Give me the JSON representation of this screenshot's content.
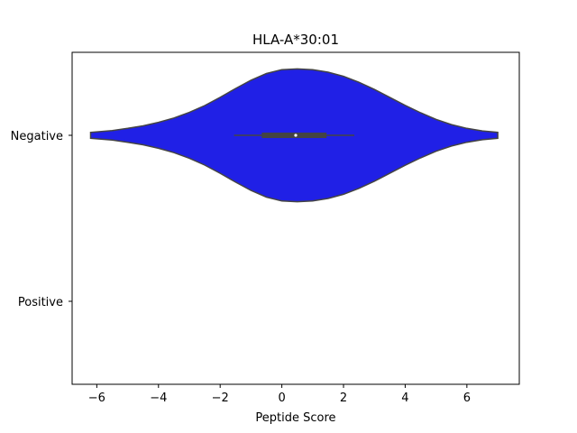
{
  "chart_data": {
    "type": "violin",
    "orientation": "horizontal",
    "title": "HLA-A*30:01",
    "xlabel": "Peptide Score",
    "ylabel": "",
    "xlim": [
      -6.8,
      7.7
    ],
    "x_ticks": [
      -6,
      -4,
      -2,
      0,
      2,
      4,
      6
    ],
    "x_tick_labels": [
      "−6",
      "−4",
      "−2",
      "0",
      "2",
      "4",
      "6"
    ],
    "categories": [
      "Negative",
      "Positive"
    ],
    "grid": false,
    "violins": [
      {
        "category": "Negative",
        "color": "#2020e6",
        "edge_color": "#444444",
        "profile": [
          [
            -6.2,
            0.045
          ],
          [
            -5.5,
            0.072
          ],
          [
            -5.0,
            0.104
          ],
          [
            -4.5,
            0.143
          ],
          [
            -4.0,
            0.195
          ],
          [
            -3.5,
            0.261
          ],
          [
            -3.0,
            0.345
          ],
          [
            -2.5,
            0.448
          ],
          [
            -2.0,
            0.572
          ],
          [
            -1.5,
            0.705
          ],
          [
            -1.0,
            0.83
          ],
          [
            -0.5,
            0.931
          ],
          [
            0.0,
            0.989
          ],
          [
            0.5,
            1.0
          ],
          [
            1.0,
            0.989
          ],
          [
            1.5,
            0.951
          ],
          [
            2.0,
            0.888
          ],
          [
            2.5,
            0.799
          ],
          [
            3.0,
            0.691
          ],
          [
            3.5,
            0.572
          ],
          [
            4.0,
            0.451
          ],
          [
            4.5,
            0.339
          ],
          [
            5.0,
            0.241
          ],
          [
            5.5,
            0.162
          ],
          [
            6.0,
            0.104
          ],
          [
            6.5,
            0.067
          ],
          [
            7.0,
            0.045
          ]
        ],
        "whisker_low": -1.55,
        "q1": -0.65,
        "median": 0.45,
        "q3": 1.45,
        "whisker_high": 2.35
      },
      {
        "category": "Positive",
        "profile": []
      }
    ]
  }
}
